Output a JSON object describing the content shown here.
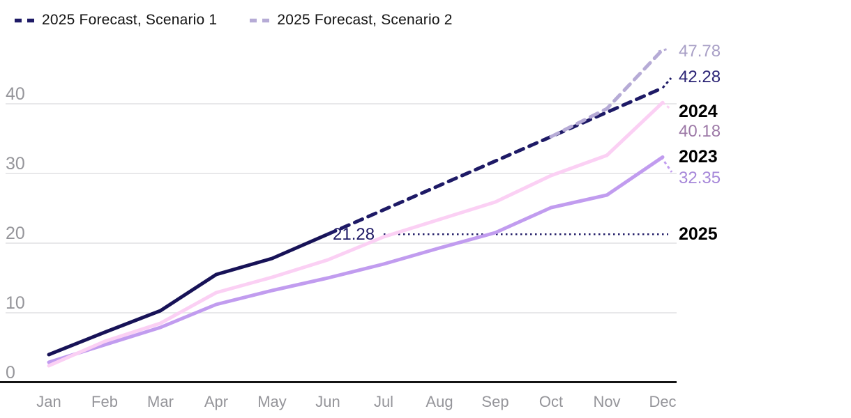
{
  "legend": {
    "items": [
      {
        "label": "2025 Forecast, Scenario 1",
        "color": "#1e1a66"
      },
      {
        "label": "2025 Forecast, Scenario 2",
        "color": "#b6abd6"
      }
    ]
  },
  "chart_data": {
    "type": "line",
    "x": [
      "Jan",
      "Feb",
      "Mar",
      "Apr",
      "May",
      "Jun",
      "Jul",
      "Aug",
      "Sep",
      "Oct",
      "Nov",
      "Dec"
    ],
    "ylim": [
      0,
      50
    ],
    "yticks": [
      0,
      10,
      20,
      30,
      40
    ],
    "grid": "horizontal",
    "legend_position": "top-left",
    "series": [
      {
        "name": "2023",
        "color": "#c19cef",
        "dash": false,
        "values": [
          2.9,
          5.4,
          7.9,
          11.2,
          13.2,
          15.0,
          17.0,
          19.3,
          21.5,
          25.1,
          26.9,
          32.35
        ]
      },
      {
        "name": "2024",
        "color": "#fbd0f4",
        "dash": false,
        "values": [
          2.4,
          5.9,
          8.5,
          12.9,
          15.1,
          17.6,
          20.9,
          23.4,
          25.9,
          29.7,
          32.6,
          40.18
        ]
      },
      {
        "name": "2025",
        "color": "#171257",
        "dash": false,
        "values": [
          4.0,
          7.2,
          10.3,
          15.5,
          17.8,
          21.28,
          null,
          null,
          null,
          null,
          null,
          null
        ]
      },
      {
        "name": "2025 Forecast, Scenario 1",
        "color": "#1e1a66",
        "dash": true,
        "values": [
          null,
          null,
          null,
          null,
          null,
          21.28,
          24.78,
          28.28,
          31.78,
          35.28,
          38.78,
          42.28
        ]
      },
      {
        "name": "2025 Forecast, Scenario 2",
        "color": "#b6abd6",
        "dash": true,
        "values": [
          null,
          null,
          null,
          null,
          null,
          null,
          null,
          null,
          null,
          35.28,
          39.3,
          47.78
        ]
      }
    ],
    "annotations": {
      "current_value_label": {
        "text": "21.28",
        "color": "#1f1a66"
      },
      "reference_line": {
        "value": 21.28,
        "style": "dotted",
        "color": "#1f1a66"
      },
      "right_labels": [
        {
          "text": "47.78",
          "color": "#a89fc6",
          "bold": false
        },
        {
          "text": "42.28",
          "color": "#2b2475",
          "bold": false
        },
        {
          "text": "2024",
          "color": "#000000",
          "bold": true
        },
        {
          "text": "40.18",
          "color": "#9d79a7",
          "bold": false
        },
        {
          "text": "2023",
          "color": "#000000",
          "bold": true
        },
        {
          "text": "32.35",
          "color": "#a687d9",
          "bold": false
        },
        {
          "text": "2025",
          "color": "#000000",
          "bold": true
        }
      ]
    },
    "axis_colors": {
      "tick_text": "#95959a",
      "gridline": "#e8e8ea",
      "axis_line": "#141414"
    }
  }
}
